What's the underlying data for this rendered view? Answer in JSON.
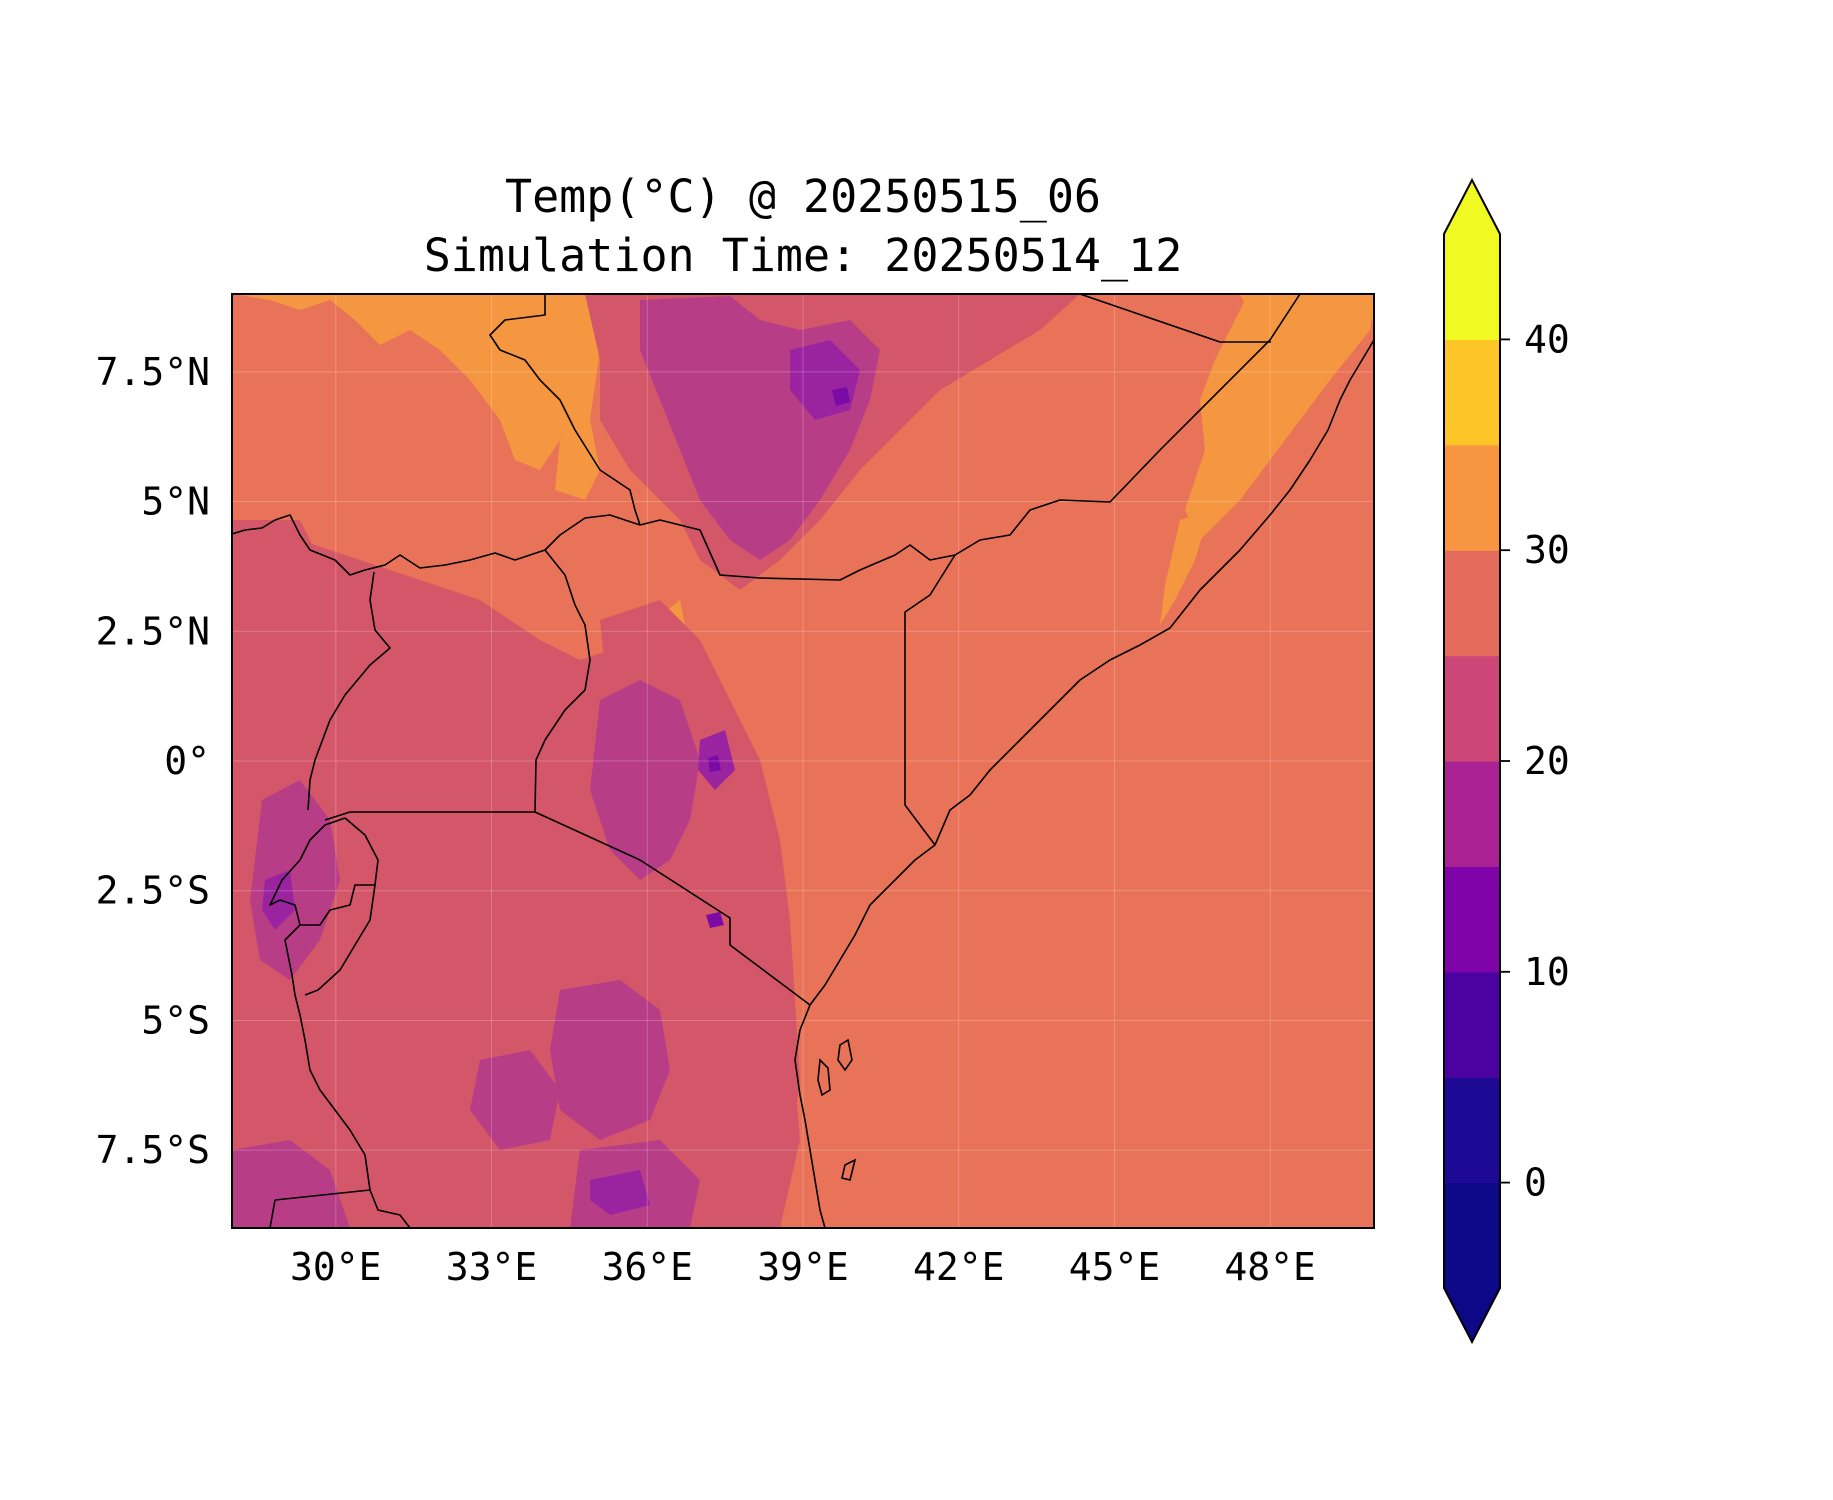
{
  "title": {
    "line1": "Temp(°C) @ 20250515_06",
    "line2": "Simulation Time: 20250514_12"
  },
  "map": {
    "variable": "2 m temperature",
    "units": "°C",
    "lon_range": [
      28,
      50
    ],
    "lat_range": [
      -9,
      9
    ],
    "gridlines": true,
    "x_ticks": [
      {
        "value": 30,
        "label": "30°E"
      },
      {
        "value": 33,
        "label": "33°E"
      },
      {
        "value": 36,
        "label": "36°E"
      },
      {
        "value": 39,
        "label": "39°E"
      },
      {
        "value": 42,
        "label": "42°E"
      },
      {
        "value": 45,
        "label": "45°E"
      },
      {
        "value": 48,
        "label": "48°E"
      }
    ],
    "y_ticks": [
      {
        "value": 7.5,
        "label": "7.5°N"
      },
      {
        "value": 5,
        "label": "5°N"
      },
      {
        "value": 2.5,
        "label": "2.5°N"
      },
      {
        "value": 0,
        "label": "0°"
      },
      {
        "value": -2.5,
        "label": "2.5°S"
      },
      {
        "value": -5,
        "label": "5°S"
      },
      {
        "value": -7.5,
        "label": "7.5°S"
      }
    ],
    "ocean_value_class": "25-30",
    "colors": {
      "c25_30": "#e87358",
      "c30_35": "#f59641",
      "c20_25": "#d35768",
      "c15_20": "#b83d87",
      "c10_15": "#9a24a0",
      "c5_10": "#7b0aa6"
    }
  },
  "colorbar": {
    "colormap": "plasma",
    "extend": "both",
    "levels": [
      -5,
      0,
      5,
      10,
      15,
      20,
      25,
      30,
      35,
      40,
      45
    ],
    "colors": [
      "#0d0887",
      "#1e0994",
      "#4c02a1",
      "#7e03a8",
      "#a92395",
      "#cc4778",
      "#e56b5d",
      "#f89540",
      "#fdc527",
      "#f0f921"
    ],
    "under_color": "#0d0887",
    "over_color": "#f0f921",
    "ticks": [
      {
        "value": 0,
        "label": "0"
      },
      {
        "value": 10,
        "label": "10"
      },
      {
        "value": 20,
        "label": "20"
      },
      {
        "value": 30,
        "label": "30"
      },
      {
        "value": 40,
        "label": "40"
      }
    ]
  }
}
